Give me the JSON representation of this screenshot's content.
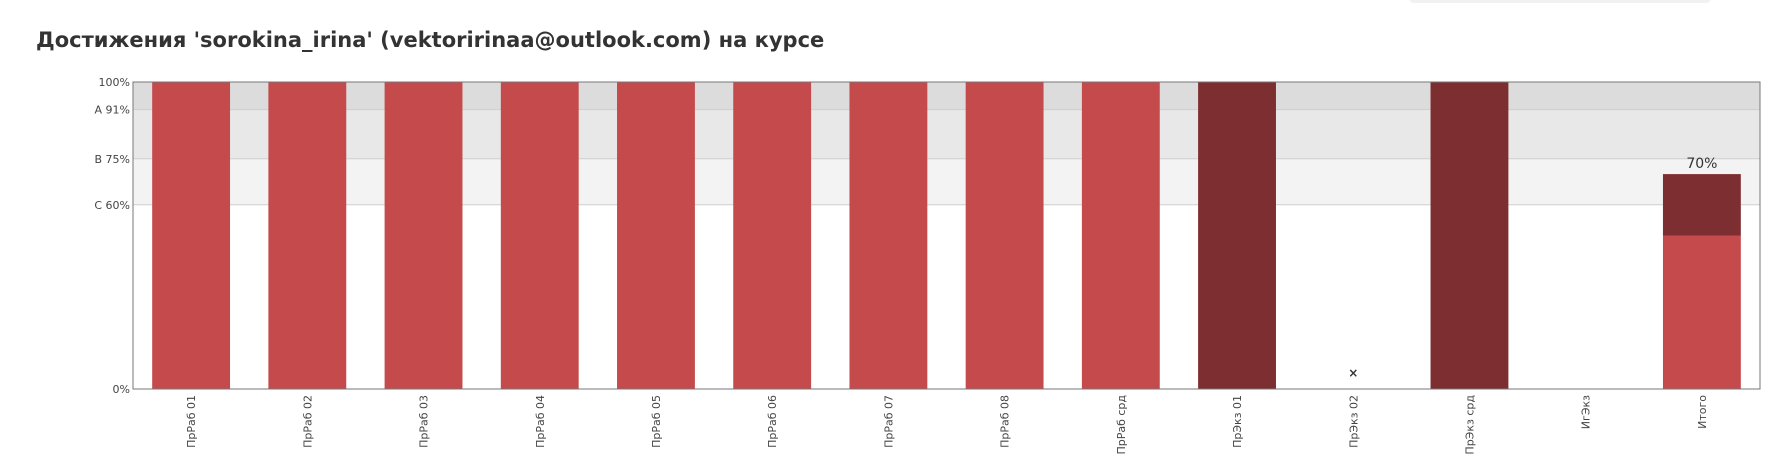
{
  "page": {
    "title": "Достижения 'sorokina_irina' (vektoririnaa@outlook.com) на курсе"
  },
  "chart_data": {
    "type": "bar",
    "ylim": [
      0,
      100
    ],
    "y_ticks": [
      {
        "value": 0,
        "label": "0%"
      },
      {
        "value": 60,
        "label": "C 60%"
      },
      {
        "value": 75,
        "label": "B 75%"
      },
      {
        "value": 91,
        "label": "A 91%"
      },
      {
        "value": 100,
        "label": "100%"
      }
    ],
    "grade_bands": [
      {
        "from": 91,
        "to": 100,
        "color": "#dcdcdc"
      },
      {
        "from": 75,
        "to": 91,
        "color": "#e8e8e8"
      },
      {
        "from": 60,
        "to": 75,
        "color": "#f3f3f3"
      }
    ],
    "categories": [
      "ПрРаб 01",
      "ПрРаб 02",
      "ПрРаб 03",
      "ПрРаб 04",
      "ПрРаб 05",
      "ПрРаб 06",
      "ПрРаб 07",
      "ПрРаб 08",
      "ПрРаб срд",
      "ПрЭкз 01",
      "ПрЭкз 02",
      "ПрЭкз срд",
      "ИгЭкз",
      "Итого"
    ],
    "bars": [
      {
        "category": "ПрРаб 01",
        "segments": [
          {
            "value": 100,
            "color": "#c44a4c"
          }
        ]
      },
      {
        "category": "ПрРаб 02",
        "segments": [
          {
            "value": 100,
            "color": "#c44a4c"
          }
        ]
      },
      {
        "category": "ПрРаб 03",
        "segments": [
          {
            "value": 100,
            "color": "#c44a4c"
          }
        ]
      },
      {
        "category": "ПрРаб 04",
        "segments": [
          {
            "value": 100,
            "color": "#c44a4c"
          }
        ]
      },
      {
        "category": "ПрРаб 05",
        "segments": [
          {
            "value": 100,
            "color": "#c44a4c"
          }
        ]
      },
      {
        "category": "ПрРаб 06",
        "segments": [
          {
            "value": 100,
            "color": "#c44a4c"
          }
        ]
      },
      {
        "category": "ПрРаб 07",
        "segments": [
          {
            "value": 100,
            "color": "#c44a4c"
          }
        ]
      },
      {
        "category": "ПрРаб 08",
        "segments": [
          {
            "value": 100,
            "color": "#c44a4c"
          }
        ]
      },
      {
        "category": "ПрРаб срд",
        "segments": [
          {
            "value": 100,
            "color": "#c44a4c"
          }
        ]
      },
      {
        "category": "ПрЭкз 01",
        "segments": [
          {
            "value": 100,
            "color": "#7d2e31"
          }
        ]
      },
      {
        "category": "ПрЭкз 02",
        "segments": [],
        "missing_marker": "×"
      },
      {
        "category": "ПрЭкз срд",
        "segments": [
          {
            "value": 100,
            "color": "#7d2e31"
          }
        ]
      },
      {
        "category": "ИгЭкз",
        "segments": []
      },
      {
        "category": "Итого",
        "segments": [
          {
            "value": 50,
            "color": "#c44a4c"
          },
          {
            "value": 20,
            "color": "#7d2e31"
          }
        ],
        "label": "70%"
      }
    ],
    "grid": true,
    "legend": "none"
  }
}
